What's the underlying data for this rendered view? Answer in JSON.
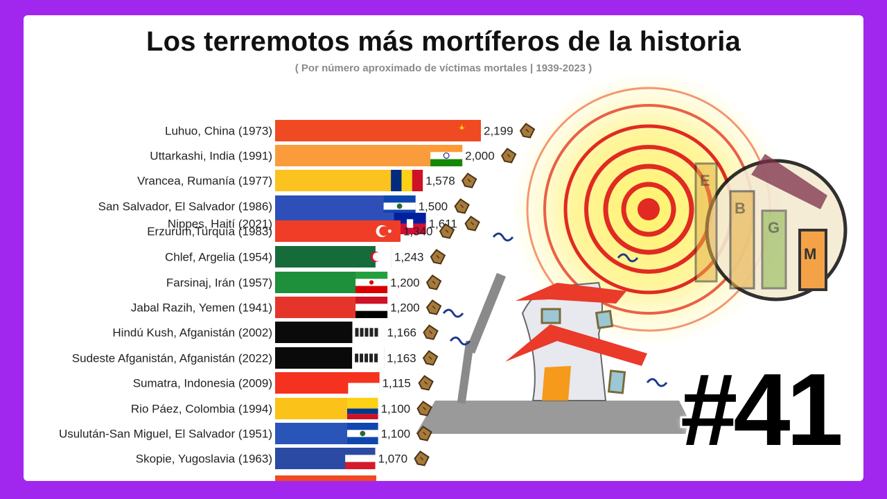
{
  "header": {
    "title": "Los terremotos más mortíferos de la historia",
    "subtitle": "( Por número aproximado de víctimas mortales | 1939-2023 )"
  },
  "episode": {
    "label": "#41"
  },
  "logo": {
    "letters": [
      "E",
      "B",
      "G",
      "M"
    ]
  },
  "colors": {
    "frame": "#a227ee"
  },
  "chart_data": {
    "type": "bar",
    "orientation": "horizontal",
    "title": "Los terremotos más mortíferos de la historia",
    "subtitle": "( Por número aproximado de víctimas mortales | 1939-2023 )",
    "xlim": [
      0,
      2199
    ],
    "categories": [
      "Luhuo, China (1973)",
      "Uttarkashi, India (1991)",
      "Vrancea, Rumanía (1977)",
      "San Salvador, El Salvador (1986)",
      "Nippes, Haití (2021)",
      "Erzurum,Turquía (1983)",
      "Chlef, Argelia (1954)",
      "Farsinaj, Irán (1957)",
      "Jabal Razih, Yemen (1941)",
      "Hindú Kush, Afganistán (2002)",
      "Sudeste Afganistán, Afganistán (2022)",
      "Sumatra, Indonesia (2009)",
      "Rio Páez, Colombia (1994)",
      "Usulután-San Miguel, El Salvador (1951)",
      "Skopie, Yugoslavia (1963)"
    ],
    "values": [
      2199,
      2000,
      1578,
      1500,
      1611,
      1340,
      1243,
      1200,
      1200,
      1166,
      1163,
      1115,
      1100,
      1100,
      1070
    ],
    "value_labels": [
      "2,199",
      "2,000",
      "1,578",
      "1,500",
      "1,611",
      "1,340",
      "1,243",
      "1,200",
      "1,200",
      "1,166",
      "1,163",
      "1,115",
      "1,100",
      "1,100",
      "1,070"
    ],
    "bar_colors": [
      "#f04a22",
      "#fb9c3c",
      "#fcc21f",
      "#2f4fb8",
      "#2f4fb8",
      "#f03d28",
      "#166b3a",
      "#1e8f3b",
      "#e5352b",
      "#0a0a0a",
      "#0a0a0a",
      "#f5321f",
      "#fbc21a",
      "#2a55b8",
      "#2a4aa3"
    ],
    "flags": [
      "china",
      "india",
      "romania",
      "el-salvador",
      "haiti",
      "turkey",
      "algeria",
      "iran",
      "yemen",
      "afghanistan",
      "afghanistan",
      "indonesia",
      "colombia",
      "el-salvador",
      "yugoslavia"
    ],
    "marker_icon": "coffin-icon",
    "grid": false,
    "legend": "none"
  }
}
